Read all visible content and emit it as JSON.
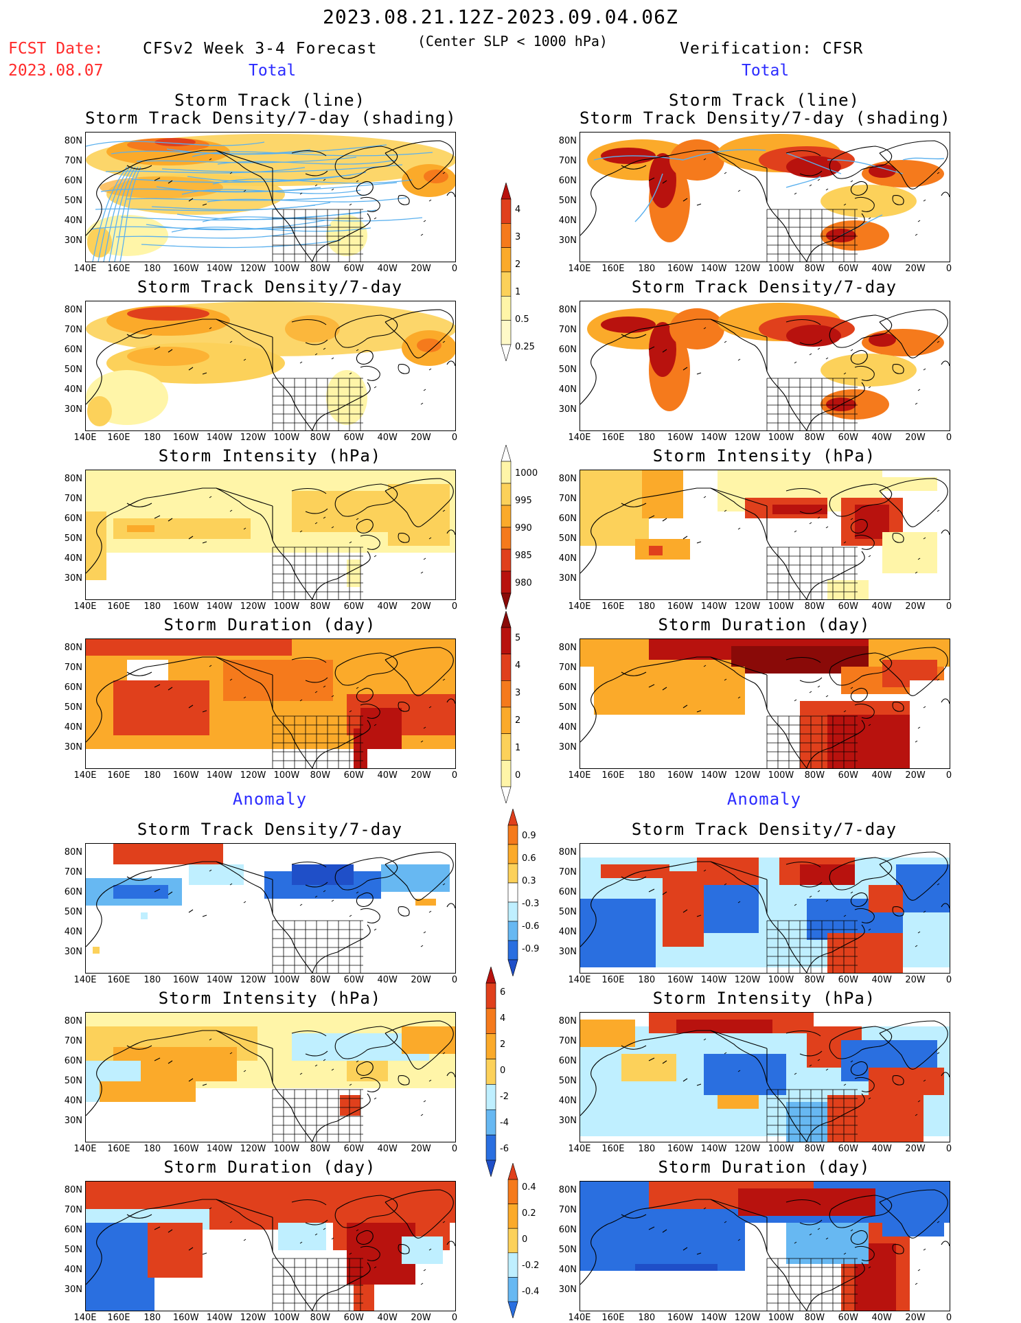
{
  "header": {
    "period": "2023.08.21.12Z-2023.09.04.06Z",
    "fcst_label": "FCST Date:",
    "fcst_date": "2023.08.07",
    "model_title": "CFSv2 Week 3-4 Forecast",
    "condition": "(Center SLP < 1000 hPa)",
    "verification": "Verification: CFSR",
    "left_section": "Total",
    "right_section": "Total",
    "anomaly_left": "Anomaly",
    "anomaly_right": "Anomaly"
  },
  "axes": {
    "lat_labels": [
      "80N",
      "70N",
      "60N",
      "50N",
      "40N",
      "30N"
    ],
    "lon_labels": [
      "140E",
      "160E",
      "180",
      "160W",
      "140W",
      "120W",
      "100W",
      "80W",
      "60W",
      "40W",
      "20W",
      "0"
    ]
  },
  "panels": {
    "p1_line1": "Storm Track (line)",
    "p1_line2": "Storm Track Density/7-day (shading)",
    "p2": "Storm Track Density/7-day",
    "p3": "Storm Intensity (hPa)",
    "p4": "Storm Duration (day)",
    "a1": "Storm Track Density/7-day",
    "a2": "Storm Intensity (hPa)",
    "a3": "Storm Duration (day)"
  },
  "colorbars": {
    "density": [
      "4",
      "3",
      "2",
      "1",
      "0.5",
      "0.25"
    ],
    "intensity": [
      "1000",
      "995",
      "990",
      "985",
      "980"
    ],
    "duration": [
      "5",
      "4",
      "3",
      "2",
      "1",
      "0"
    ],
    "anom_density": [
      "0.9",
      "0.6",
      "0.3",
      "-0.3",
      "-0.6",
      "-0.9"
    ],
    "anom_intensity": [
      "6",
      "4",
      "2",
      "0",
      "-2",
      "-4",
      "-6"
    ],
    "anom_duration": [
      "0.4",
      "0.2",
      "0",
      "-0.2",
      "-0.4"
    ]
  },
  "colors": {
    "c1": "#fff5a8",
    "c2": "#fcd15a",
    "c3": "#fbaa2a",
    "c4": "#f57a1c",
    "c5": "#e0401c",
    "c6": "#b8120e",
    "c7": "#8a0a08",
    "b1": "#bfefff",
    "b2": "#67b8f2",
    "b3": "#2a6fe0",
    "b4": "#1f4fc8",
    "track": "#5ab0ee"
  }
}
